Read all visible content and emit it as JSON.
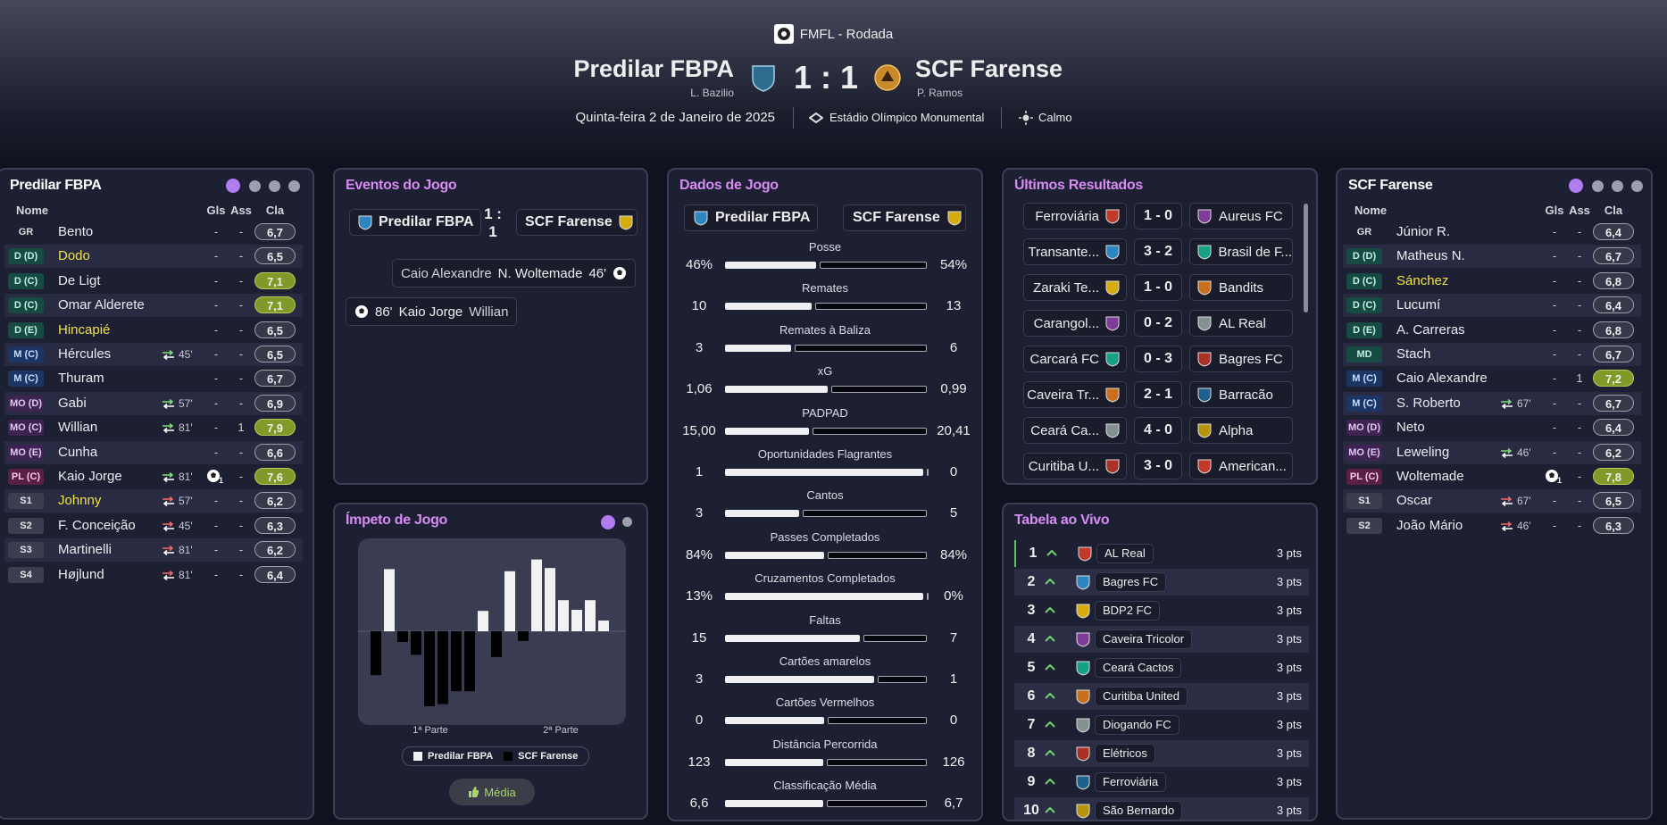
{
  "header": {
    "competition": "FMFL - Rodada",
    "home": {
      "name": "Predilar FBPA",
      "manager": "L. Bazilio"
    },
    "away": {
      "name": "SCF Farense",
      "manager": "P. Ramos"
    },
    "score": "1 : 1",
    "date": "Quinta-feira 2 de Janeiro de 2025",
    "stadium": "Estádio Olímpico Monumental",
    "weather": "Calmo"
  },
  "home_lineup": {
    "title": "Predilar FBPA",
    "columns": [
      "Nome",
      "Gls",
      "Ass",
      "Cla"
    ],
    "players": [
      {
        "pos": "GR",
        "name": "Bento",
        "gls": "-",
        "ass": "-",
        "rating": "6,7"
      },
      {
        "pos": "D (D)",
        "name": "Dodo",
        "name_color": "#f2e24a",
        "gls": "-",
        "ass": "-",
        "rating": "6,5"
      },
      {
        "pos": "D (C)",
        "name": "De Ligt",
        "gls": "-",
        "ass": "-",
        "rating": "7,1",
        "rating_color": "#7f9a28"
      },
      {
        "pos": "D (C)",
        "name": "Omar Alderete",
        "gls": "-",
        "ass": "-",
        "rating": "7,1",
        "rating_color": "#7f9a28"
      },
      {
        "pos": "D (E)",
        "name": "Hincapié",
        "name_color": "#f2e24a",
        "gls": "-",
        "ass": "-",
        "rating": "6,5"
      },
      {
        "pos": "M (C)",
        "name": "Hércules",
        "sub": "45'",
        "sub_type": "off",
        "gls": "-",
        "ass": "-",
        "rating": "6,5"
      },
      {
        "pos": "M (C)",
        "name": "Thuram",
        "gls": "-",
        "ass": "-",
        "rating": "6,7"
      },
      {
        "pos": "MO (D)",
        "name": "Gabi",
        "sub": "57'",
        "sub_type": "off",
        "gls": "-",
        "ass": "-",
        "rating": "6,9"
      },
      {
        "pos": "MO (C)",
        "name": "Willian",
        "sub": "81'",
        "sub_type": "off",
        "gls": "-",
        "ass": "1",
        "rating": "7,9",
        "rating_color": "#7f9a28"
      },
      {
        "pos": "MO (E)",
        "name": "Cunha",
        "gls": "-",
        "ass": "-",
        "rating": "6,6"
      },
      {
        "pos": "PL (C)",
        "name": "Kaio Jorge",
        "sub": "81'",
        "sub_type": "off",
        "goal": true,
        "gls": "1",
        "ass": "-",
        "rating": "7,6",
        "rating_color": "#7f9a28"
      },
      {
        "pos": "S1",
        "name": "Johnny",
        "name_color": "#f2e24a",
        "sub": "57'",
        "sub_type": "on",
        "gls": "-",
        "ass": "-",
        "rating": "6,2"
      },
      {
        "pos": "S2",
        "name": "F. Conceição",
        "sub": "45'",
        "sub_type": "on",
        "gls": "-",
        "ass": "-",
        "rating": "6,3"
      },
      {
        "pos": "S3",
        "name": "Martinelli",
        "sub": "81'",
        "sub_type": "on",
        "gls": "-",
        "ass": "-",
        "rating": "6,2"
      },
      {
        "pos": "S4",
        "name": "Højlund",
        "sub": "81'",
        "sub_type": "on",
        "gls": "-",
        "ass": "-",
        "rating": "6,4"
      }
    ]
  },
  "away_lineup": {
    "title": "SCF Farense",
    "columns": [
      "Nome",
      "Gls",
      "Ass",
      "Cla"
    ],
    "players": [
      {
        "pos": "GR",
        "name": "Júnior R.",
        "gls": "-",
        "ass": "-",
        "rating": "6,4"
      },
      {
        "pos": "D (D)",
        "name": "Matheus N.",
        "gls": "-",
        "ass": "-",
        "rating": "6,7"
      },
      {
        "pos": "D (C)",
        "name": "Sánchez",
        "name_color": "#f2e24a",
        "gls": "-",
        "ass": "-",
        "rating": "6,8"
      },
      {
        "pos": "D (C)",
        "name": "Lucumí",
        "gls": "-",
        "ass": "-",
        "rating": "6,4"
      },
      {
        "pos": "D (E)",
        "name": "A. Carreras",
        "gls": "-",
        "ass": "-",
        "rating": "6,8"
      },
      {
        "pos": "MD",
        "name": "Stach",
        "gls": "-",
        "ass": "-",
        "rating": "6,7"
      },
      {
        "pos": "M (C)",
        "name": "Caio Alexandre",
        "gls": "-",
        "ass": "1",
        "rating": "7,2",
        "rating_color": "#7f9a28"
      },
      {
        "pos": "M (C)",
        "name": "S. Roberto",
        "sub": "67'",
        "sub_type": "off",
        "gls": "-",
        "ass": "-",
        "rating": "6,7"
      },
      {
        "pos": "MO (D)",
        "name": "Neto",
        "gls": "-",
        "ass": "-",
        "rating": "6,4"
      },
      {
        "pos": "MO (E)",
        "name": "Leweling",
        "sub": "46'",
        "sub_type": "off",
        "gls": "-",
        "ass": "-",
        "rating": "6,2"
      },
      {
        "pos": "PL (C)",
        "name": "Woltemade",
        "goal": true,
        "gls": "1",
        "ass": "-",
        "rating": "7,8",
        "rating_color": "#7f9a28"
      },
      {
        "pos": "S1",
        "name": "Oscar",
        "sub": "67'",
        "sub_type": "on",
        "gls": "-",
        "ass": "-",
        "rating": "6,5"
      },
      {
        "pos": "S2",
        "name": "João Mário",
        "sub": "46'",
        "sub_type": "on",
        "gls": "-",
        "ass": "-",
        "rating": "6,3"
      }
    ]
  },
  "events": {
    "title": "Eventos do Jogo",
    "home": "Predilar FBPA",
    "score": "1 : 1",
    "away": "SCF Farense",
    "items": [
      {
        "side": "away",
        "assist": "Caio Alexandre",
        "scorer": "N. Woltemade",
        "minute": "46'"
      },
      {
        "side": "home",
        "minute": "86'",
        "scorer": "Kaio Jorge",
        "assist": "Willian"
      }
    ]
  },
  "momentum": {
    "title": "Ímpeto de Jogo",
    "ylim": [
      0,
      85
    ],
    "periods": [
      "1ª Parte",
      "2ª Parte"
    ],
    "button": "Média",
    "series": [
      {
        "name": "Predilar FBPA",
        "color": "#f2f2f2",
        "values": [
          null,
          58,
          null,
          null,
          null,
          null,
          null,
          null,
          19,
          null,
          56,
          null,
          67,
          59,
          29,
          20,
          29,
          10
        ]
      },
      {
        "name": "SCF Farense",
        "color": "#000000",
        "values": [
          41,
          null,
          10,
          22,
          70,
          68,
          56,
          56,
          null,
          24,
          null,
          9,
          null,
          null,
          null,
          null,
          null,
          null
        ]
      }
    ]
  },
  "stats": {
    "title": "Dados de Jogo",
    "home": "Predilar FBPA",
    "away": "SCF Farense",
    "rows": [
      {
        "label": "Posse",
        "values": [
          46,
          54
        ],
        "value_labels": [
          "46%",
          "54%"
        ]
      },
      {
        "label": "Remates",
        "values": [
          10,
          13
        ]
      },
      {
        "label": "Remates à Baliza",
        "values": [
          3,
          6
        ]
      },
      {
        "label": "xG",
        "values": [
          1.06,
          0.99
        ],
        "value_labels": [
          "1,06",
          "0,99"
        ]
      },
      {
        "label": "PADPAD",
        "values": [
          15,
          20.41
        ],
        "value_labels": [
          "15,00",
          "20,41"
        ]
      },
      {
        "label": "Oportunidades Flagrantes",
        "values": [
          1,
          0
        ]
      },
      {
        "label": "Cantos",
        "values": [
          3,
          5
        ]
      },
      {
        "label": "Passes Completados",
        "values": [
          84,
          84
        ],
        "value_labels": [
          "84%",
          "84%"
        ]
      },
      {
        "label": "Cruzamentos Completados",
        "values": [
          13,
          0
        ],
        "value_labels": [
          "13%",
          "0%"
        ]
      },
      {
        "label": "Faltas",
        "values": [
          15,
          7
        ]
      },
      {
        "label": "Cartões amarelos",
        "values": [
          3,
          1
        ]
      },
      {
        "label": "Cartões Vermelhos",
        "values": [
          0,
          0
        ]
      },
      {
        "label": "Distância Percorrida",
        "values": [
          123,
          126
        ]
      },
      {
        "label": "Classificação Média",
        "values": [
          6.6,
          6.7
        ],
        "value_labels": [
          "6,6",
          "6,7"
        ]
      }
    ]
  },
  "results": {
    "title": "Últimos Resultados",
    "rows": [
      {
        "home": "Ferroviária",
        "score": "1 - 0",
        "away": "Aureus FC"
      },
      {
        "home": "Transante...",
        "score": "3 - 2",
        "away": "Brasil de F..."
      },
      {
        "home": "Zaraki Te...",
        "score": "1 - 0",
        "away": "Bandits"
      },
      {
        "home": "Carangol...",
        "score": "0 - 2",
        "away": "AL Real"
      },
      {
        "home": "Carcará FC",
        "score": "0 - 3",
        "away": "Bagres FC"
      },
      {
        "home": "Caveira Tr...",
        "score": "2 - 1",
        "away": "Barracão"
      },
      {
        "home": "Ceará Ca...",
        "score": "4 - 0",
        "away": "Alpha"
      },
      {
        "home": "Curitiba U...",
        "score": "3 - 0",
        "away": "American..."
      }
    ]
  },
  "table": {
    "title": "Tabela ao Vivo",
    "rows": [
      {
        "pos": 1,
        "team": "AL Real",
        "pts": "3 pts"
      },
      {
        "pos": 2,
        "team": "Bagres FC",
        "pts": "3 pts"
      },
      {
        "pos": 3,
        "team": "BDP2 FC",
        "pts": "3 pts"
      },
      {
        "pos": 4,
        "team": "Caveira Tricolor",
        "pts": "3 pts"
      },
      {
        "pos": 5,
        "team": "Ceará Cactos",
        "pts": "3 pts"
      },
      {
        "pos": 6,
        "team": "Curitiba United",
        "pts": "3 pts"
      },
      {
        "pos": 7,
        "team": "Diogando FC",
        "pts": "3 pts"
      },
      {
        "pos": 8,
        "team": "Elétricos",
        "pts": "3 pts"
      },
      {
        "pos": 9,
        "team": "Ferroviária",
        "pts": "3 pts"
      },
      {
        "pos": 10,
        "team": "São Bernardo",
        "pts": "3 pts"
      }
    ]
  }
}
